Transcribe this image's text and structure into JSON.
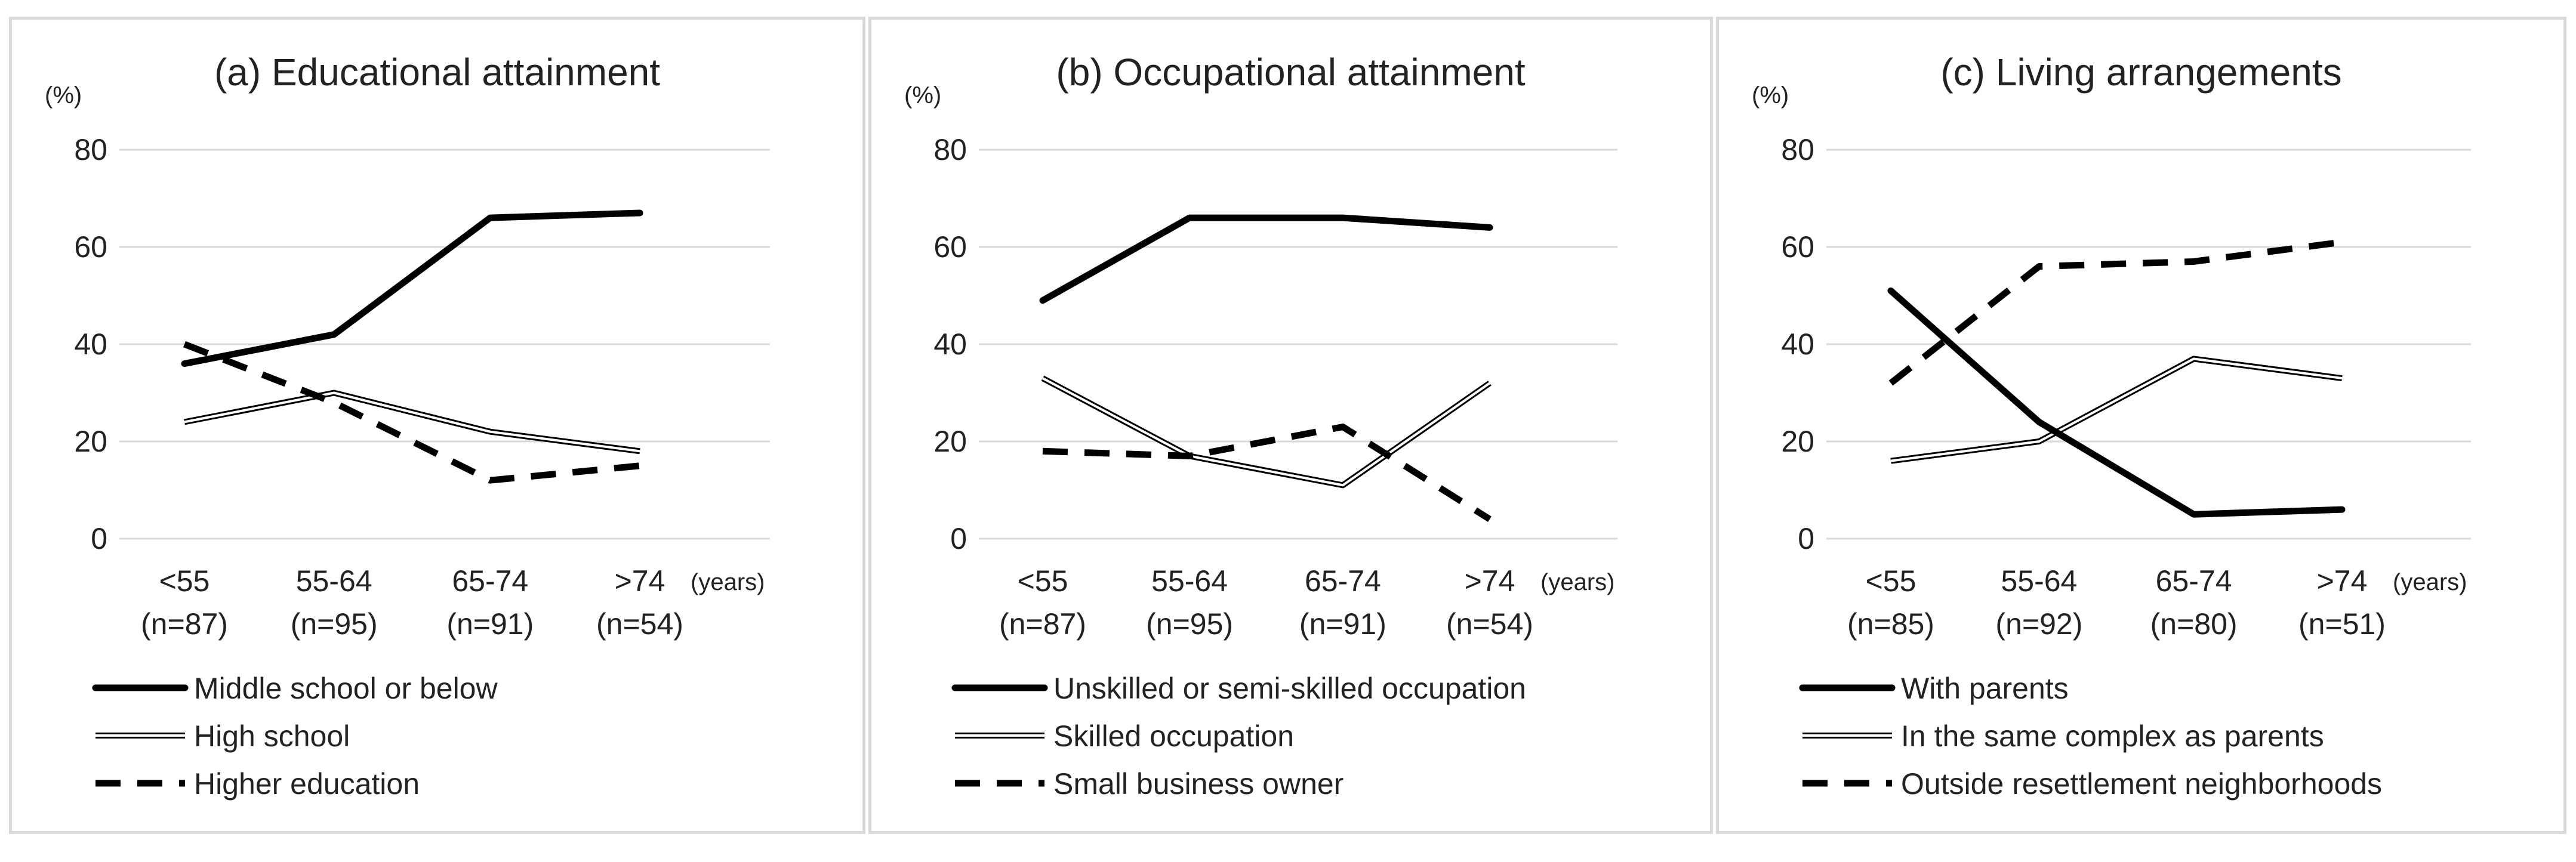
{
  "chart_data": [
    {
      "type": "line",
      "title": "(a) Educational attainment",
      "ylabel": "(%)",
      "xlabel": "(years)",
      "ylim": [
        0,
        80
      ],
      "yticks": [
        "0",
        "20",
        "40",
        "60",
        "80"
      ],
      "categories": [
        "<55",
        "55-64",
        "65-74",
        ">74"
      ],
      "category_counts": [
        "(n=87)",
        "(n=95)",
        "(n=91)",
        "(n=54)"
      ],
      "grid": true,
      "legend_position": "bottom",
      "series": [
        {
          "name": "Middle school or below",
          "style": "solid",
          "values": [
            36,
            42,
            66,
            67
          ]
        },
        {
          "name": "High school",
          "style": "double",
          "values": [
            24,
            30,
            22,
            18
          ]
        },
        {
          "name": "Higher education",
          "style": "dashed",
          "values": [
            40,
            28,
            12,
            15
          ]
        }
      ]
    },
    {
      "type": "line",
      "title": "(b) Occupational attainment",
      "ylabel": "(%)",
      "xlabel": "(years)",
      "ylim": [
        0,
        80
      ],
      "yticks": [
        "0",
        "20",
        "40",
        "60",
        "80"
      ],
      "categories": [
        "<55",
        "55-64",
        "65-74",
        ">74"
      ],
      "category_counts": [
        "(n=87)",
        "(n=95)",
        "(n=91)",
        "(n=54)"
      ],
      "grid": true,
      "legend_position": "bottom",
      "series": [
        {
          "name": "Unskilled or semi-skilled occupation",
          "style": "solid",
          "values": [
            49,
            66,
            66,
            64
          ]
        },
        {
          "name": "Skilled occupation",
          "style": "double",
          "values": [
            33,
            17,
            11,
            32
          ]
        },
        {
          "name": "Small business owner",
          "style": "dashed",
          "values": [
            18,
            17,
            23,
            4
          ]
        }
      ]
    },
    {
      "type": "line",
      "title": "(c) Living arrangements",
      "ylabel": "(%)",
      "xlabel": "(years)",
      "ylim": [
        0,
        80
      ],
      "yticks": [
        "0",
        "20",
        "40",
        "60",
        "80"
      ],
      "categories": [
        "<55",
        "55-64",
        "65-74",
        ">74"
      ],
      "category_counts": [
        "(n=85)",
        "(n=92)",
        "(n=80)",
        "(n=51)"
      ],
      "grid": true,
      "legend_position": "bottom",
      "series": [
        {
          "name": "With parents",
          "style": "solid",
          "values": [
            51,
            24,
            5,
            6
          ]
        },
        {
          "name": "In the same complex as parents",
          "style": "double",
          "values": [
            16,
            20,
            37,
            33
          ]
        },
        {
          "name": "Outside resettlement neighborhoods",
          "style": "dashed",
          "values": [
            32,
            56,
            57,
            61
          ]
        }
      ]
    }
  ]
}
